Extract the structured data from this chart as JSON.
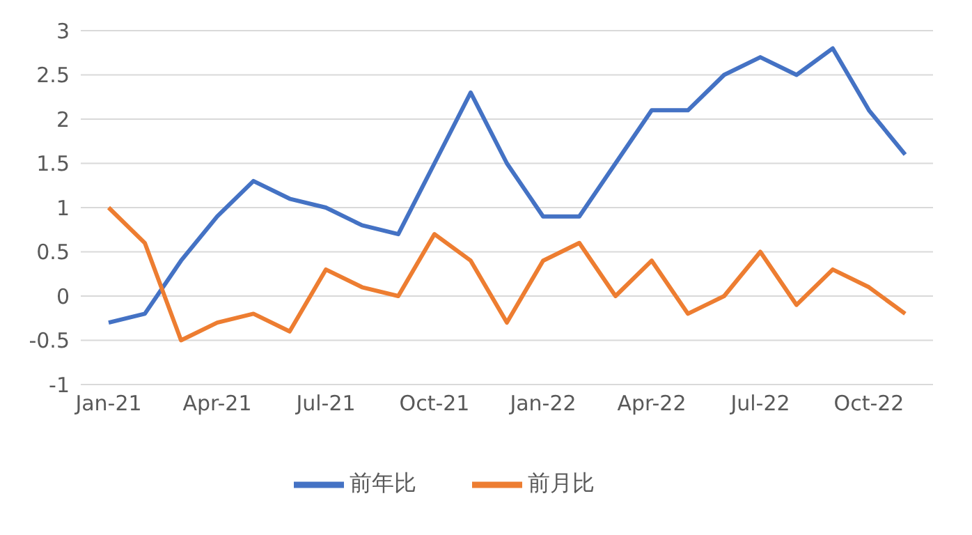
{
  "chart_data": {
    "type": "line",
    "categories": [
      "Jan-21",
      null,
      null,
      "Apr-21",
      null,
      null,
      "Jul-21",
      null,
      null,
      "Oct-21",
      null,
      null,
      "Jan-22",
      null,
      null,
      "Apr-22",
      null,
      null,
      "Jul-22",
      null,
      null,
      "Oct-22",
      null
    ],
    "series": [
      {
        "name": "前年比",
        "color": "#4472c4",
        "values": [
          -0.3,
          -0.2,
          0.4,
          0.9,
          1.3,
          1.1,
          1.0,
          0.8,
          0.7,
          1.5,
          2.3,
          1.5,
          0.9,
          0.9,
          1.5,
          2.1,
          2.1,
          2.5,
          2.7,
          2.5,
          2.8,
          2.1,
          1.6
        ]
      },
      {
        "name": "前月比",
        "color": "#ed7d31",
        "values": [
          1.0,
          0.6,
          -0.5,
          -0.3,
          -0.2,
          -0.4,
          0.3,
          0.1,
          0.0,
          0.7,
          0.4,
          -0.3,
          0.4,
          0.6,
          0.0,
          0.4,
          -0.2,
          0.0,
          0.5,
          -0.1,
          0.3,
          0.1,
          -0.2
        ]
      }
    ],
    "ylim": [
      -1,
      3
    ],
    "yticks": [
      -1,
      -0.5,
      0,
      0.5,
      1,
      1.5,
      2,
      2.5,
      3
    ],
    "grid": "y",
    "legend": "bottom",
    "marker": "none",
    "line_style": "solid"
  }
}
